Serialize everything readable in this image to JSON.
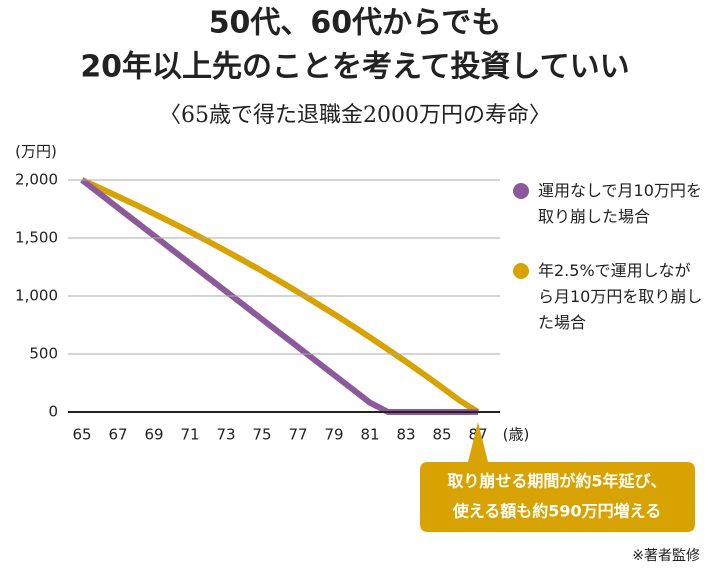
{
  "chart_data": {
    "type": "line",
    "title": [
      "50代、60代からでも",
      "20年以上先のことを考えて投資していい"
    ],
    "subtitle": "〈65歳で得た退職金2000万円の寿命〉",
    "y_label": "(万円)",
    "x_label": "(歳)",
    "x": [
      65,
      66,
      67,
      68,
      69,
      70,
      71,
      72,
      73,
      74,
      75,
      76,
      77,
      78,
      79,
      80,
      81,
      82,
      83,
      84,
      85,
      86,
      87
    ],
    "series": [
      {
        "name": "運用なしで月10万円を取り崩した場合",
        "color": "#8c5a9b",
        "values": [
          2000,
          1880,
          1760,
          1640,
          1520,
          1400,
          1280,
          1160,
          1040,
          920,
          800,
          680,
          560,
          440,
          320,
          200,
          80,
          0,
          0,
          0,
          0,
          0,
          0
        ]
      },
      {
        "name": "年2.5%で運用しながら月10万円を取り崩した場合",
        "color": "#d8a300",
        "values": [
          2000,
          1930,
          1858,
          1785,
          1709,
          1632,
          1553,
          1472,
          1388,
          1303,
          1216,
          1126,
          1034,
          940,
          844,
          745,
          643,
          539,
          433,
          324,
          212,
          97,
          0
        ]
      }
    ],
    "xlim": [
      65,
      87
    ],
    "xticks": [
      65,
      67,
      69,
      71,
      73,
      75,
      77,
      79,
      81,
      83,
      85,
      87
    ],
    "ylim": [
      0,
      2000
    ],
    "yticks": [
      {
        "value": 2000,
        "label": "2,000"
      },
      {
        "value": 1500,
        "label": "1,500"
      },
      {
        "value": 1000,
        "label": "1,000"
      },
      500,
      0
    ],
    "grid": true,
    "annotation": [
      "取り崩せる期間が約5年延び、",
      "使える額も約590万円増える"
    ],
    "note": "※著者監修"
  }
}
